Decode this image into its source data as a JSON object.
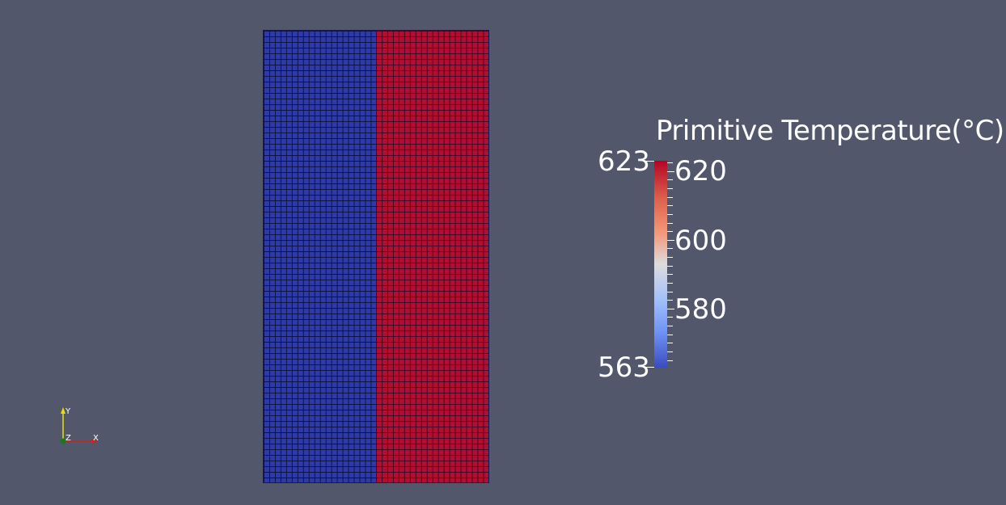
{
  "colorbar": {
    "title": "Primitive Temperature(°C)",
    "range_min": "563",
    "range_max": "623",
    "ticks": [
      "620",
      "600",
      "580"
    ],
    "colors": {
      "high": "#b40426",
      "mid": "#dddcdc",
      "low": "#3b4cc0"
    }
  },
  "mesh": {
    "left_region_color": "#2e3ba4",
    "right_region_color": "#b30e32"
  },
  "axes": {
    "y_label": "Y",
    "z_label": "Z",
    "x_label": "X",
    "colors": {
      "x": "#cc2222",
      "y": "#e8e000",
      "z": "#1a7a1a"
    }
  }
}
